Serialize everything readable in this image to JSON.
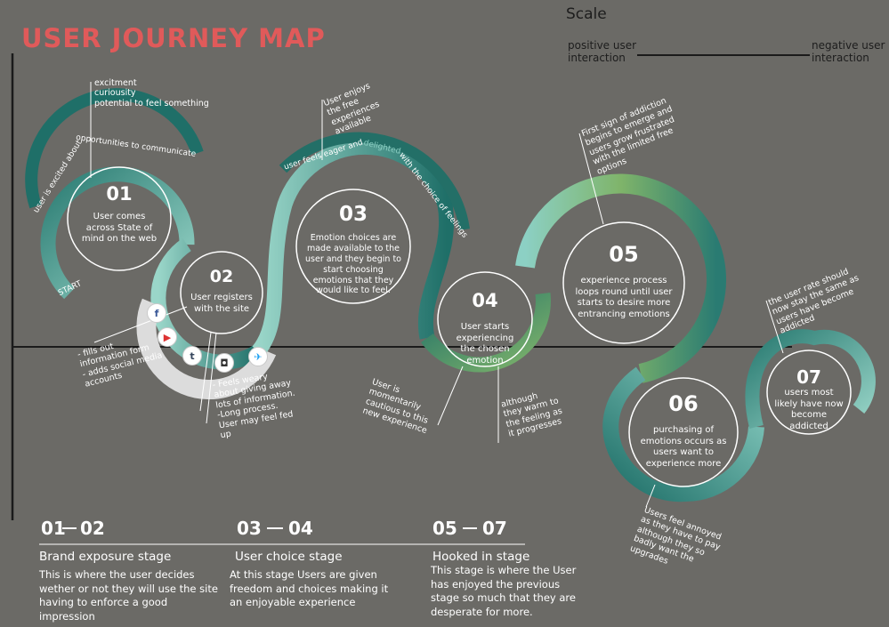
{
  "title": "USER JOURNEY MAP",
  "scale": {
    "title": "Scale",
    "positive": "positive user interaction",
    "negative": "negative user interaction"
  },
  "start_label": "START",
  "colors": {
    "title": "#e05a5a",
    "background": "#6b6a66",
    "teal_dark": "#1f6f68",
    "teal_mid": "#3a8c84",
    "teal_light": "#8cd0c4",
    "green": "#7fb46a"
  },
  "steps": [
    {
      "num": "01",
      "text": "User comes across State of mind on the web"
    },
    {
      "num": "02",
      "text": "User registers with the site"
    },
    {
      "num": "03",
      "text": "Emotion choices are made available to the user and they begin to start choosing emotions that they would like to feel."
    },
    {
      "num": "04",
      "text": "User starts experiencing the chosen emotion"
    },
    {
      "num": "05",
      "text": "experience process loops round until user starts to desire more entrancing emotions"
    },
    {
      "num": "06",
      "text": "purchasing of emotions occurs as users want to experience more"
    },
    {
      "num": "07",
      "text": "users most likely have now become addicted"
    }
  ],
  "arc_labels": {
    "a1": "user is excited about opportunities to communicate",
    "a3_part1": "user feels eager and",
    "a3_part2": "delighted",
    "a3_part3": "with the choice of feelings"
  },
  "notes": {
    "n1": "excitment\ncuriousity\npotential to feel something",
    "n2": "- fills out information form\n- adds social media accounts",
    "n3": "- Feels weary about giving away lots of information.\n-Long process. User may feel fed up",
    "n4": "User enjoys the free experiences available",
    "n5": "User is momentarily cautious to this new experience",
    "n6": "although they warm to the feeling as it progresses",
    "n7": "First sign of addiction begins to emerge and users grow frustrated with the limited free options",
    "n8": "Users feel annoyed as they have to pay although they so badly want the upgrades",
    "n9": "the user rate should now stay the same as users have become addicted"
  },
  "social_icons": [
    "facebook-icon",
    "youtube-icon",
    "tumblr-icon",
    "instagram-icon",
    "twitter-icon"
  ],
  "stages": [
    {
      "range_a": "01",
      "range_b": "02",
      "name": "Brand exposure stage",
      "desc": "This is where the user decides wether or not they will use the site having to enforce a good impression"
    },
    {
      "range_a": "03",
      "range_b": "04",
      "name": "User choice stage",
      "desc": "At this stage Users are given freedom and choices making it an enjoyable experience"
    },
    {
      "range_a": "05",
      "range_b": "07",
      "name": "Hooked in stage",
      "desc": "This stage is where the User has enjoyed the previous stage so much that they are desperate for more."
    }
  ]
}
